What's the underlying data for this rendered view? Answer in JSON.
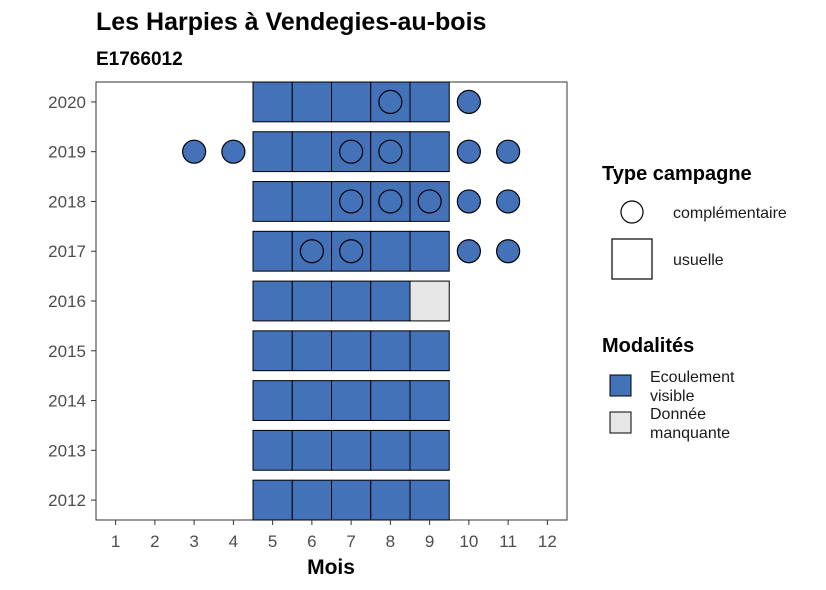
{
  "chart_data": {
    "type": "heatmap",
    "title": "Les Harpies à Vendegies-au-bois",
    "subtitle": "E1766012",
    "xlabel": "Mois",
    "ylabel": "",
    "x_ticks": [
      1,
      2,
      3,
      4,
      5,
      6,
      7,
      8,
      9,
      10,
      11,
      12
    ],
    "y_ticks": [
      2012,
      2013,
      2014,
      2015,
      2016,
      2017,
      2018,
      2019,
      2020
    ],
    "xlim": [
      0.5,
      12.5
    ],
    "ylim": [
      2011.6,
      2020.4
    ],
    "grid": false,
    "legends": {
      "type_campagne": {
        "title": "Type campagne",
        "items": [
          {
            "key": "complementaire",
            "label": "complémentaire",
            "shape": "circle"
          },
          {
            "key": "usuelle",
            "label": "usuelle",
            "shape": "square"
          }
        ]
      },
      "modalites": {
        "title": "Modalités",
        "items": [
          {
            "key": "ecoulement",
            "label_lines": [
              "Ecoulement",
              "visible"
            ],
            "color": "#4472b8"
          },
          {
            "key": "manquante",
            "label_lines": [
              "Donnée",
              "manquante"
            ],
            "color": "#e6e6e6"
          }
        ]
      }
    },
    "usuelle": [
      {
        "year": 2020,
        "months": [
          5,
          6,
          7,
          8,
          9
        ],
        "modalite": "ecoulement"
      },
      {
        "year": 2019,
        "months": [
          5,
          6,
          7,
          8,
          9
        ],
        "modalite": "ecoulement"
      },
      {
        "year": 2018,
        "months": [
          5,
          6,
          7,
          8,
          9
        ],
        "modalite": "ecoulement"
      },
      {
        "year": 2017,
        "months": [
          5,
          6,
          7,
          8,
          9
        ],
        "modalite": "ecoulement"
      },
      {
        "year": 2016,
        "months": [
          5,
          6,
          7,
          8
        ],
        "modalite": "ecoulement"
      },
      {
        "year": 2016,
        "months": [
          9
        ],
        "modalite": "manquante"
      },
      {
        "year": 2015,
        "months": [
          5,
          6,
          7,
          8,
          9
        ],
        "modalite": "ecoulement"
      },
      {
        "year": 2014,
        "months": [
          5,
          6,
          7,
          8,
          9
        ],
        "modalite": "ecoulement"
      },
      {
        "year": 2013,
        "months": [
          5,
          6,
          7,
          8,
          9
        ],
        "modalite": "ecoulement"
      },
      {
        "year": 2012,
        "months": [
          5,
          6,
          7,
          8,
          9
        ],
        "modalite": "ecoulement"
      }
    ],
    "complementaire": [
      {
        "year": 2020,
        "month": 8,
        "modalite": "ecoulement"
      },
      {
        "year": 2020,
        "month": 10,
        "modalite": "ecoulement"
      },
      {
        "year": 2019,
        "month": 3,
        "modalite": "ecoulement"
      },
      {
        "year": 2019,
        "month": 4,
        "modalite": "ecoulement"
      },
      {
        "year": 2019,
        "month": 7,
        "modalite": "ecoulement"
      },
      {
        "year": 2019,
        "month": 8,
        "modalite": "ecoulement"
      },
      {
        "year": 2019,
        "month": 10,
        "modalite": "ecoulement"
      },
      {
        "year": 2019,
        "month": 11,
        "modalite": "ecoulement"
      },
      {
        "year": 2018,
        "month": 7,
        "modalite": "ecoulement"
      },
      {
        "year": 2018,
        "month": 8,
        "modalite": "ecoulement"
      },
      {
        "year": 2018,
        "month": 9,
        "modalite": "ecoulement"
      },
      {
        "year": 2018,
        "month": 10,
        "modalite": "ecoulement"
      },
      {
        "year": 2018,
        "month": 11,
        "modalite": "ecoulement"
      },
      {
        "year": 2017,
        "month": 6,
        "modalite": "ecoulement"
      },
      {
        "year": 2017,
        "month": 7,
        "modalite": "ecoulement"
      },
      {
        "year": 2017,
        "month": 10,
        "modalite": "ecoulement"
      },
      {
        "year": 2017,
        "month": 11,
        "modalite": "ecoulement"
      }
    ]
  }
}
